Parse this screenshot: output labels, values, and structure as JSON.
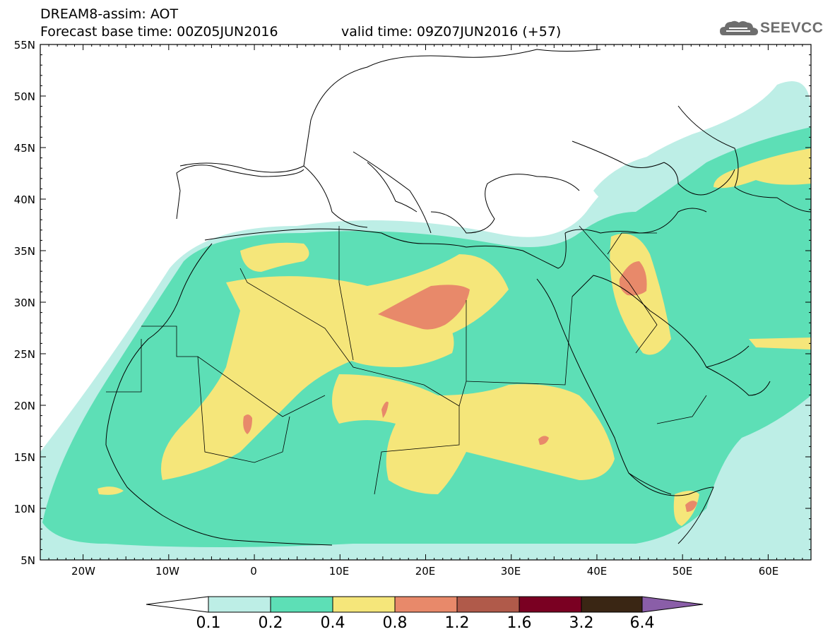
{
  "header": {
    "line1": "DREAM8-assim: AOT",
    "line2": "Forecast base time: 00Z05JUN2016",
    "valid": "valid time: 09Z07JUN2016 (+57)",
    "logo_text": "SEEVCCC",
    "logo_icon": "cloud-icon"
  },
  "map": {
    "lat_labels": [
      "55N",
      "50N",
      "45N",
      "40N",
      "35N",
      "30N",
      "25N",
      "20N",
      "15N",
      "10N",
      "5N"
    ],
    "lon_labels": [
      "20W",
      "10W",
      "0",
      "10E",
      "20E",
      "30E",
      "40E",
      "50E",
      "60E"
    ],
    "extent": {
      "lon_min": -25,
      "lon_max": 65,
      "lat_min": 5,
      "lat_max": 55
    }
  },
  "colorbar": {
    "labels": [
      "0.1",
      "0.2",
      "0.4",
      "0.8",
      "1.2",
      "1.6",
      "3.2",
      "6.4"
    ],
    "colors": [
      "#ffffff",
      "#bdeee6",
      "#5ddfb6",
      "#f5e67a",
      "#e8896a",
      "#b05a4a",
      "#7a0022",
      "#3a2614",
      "#8a5ea8"
    ]
  }
}
